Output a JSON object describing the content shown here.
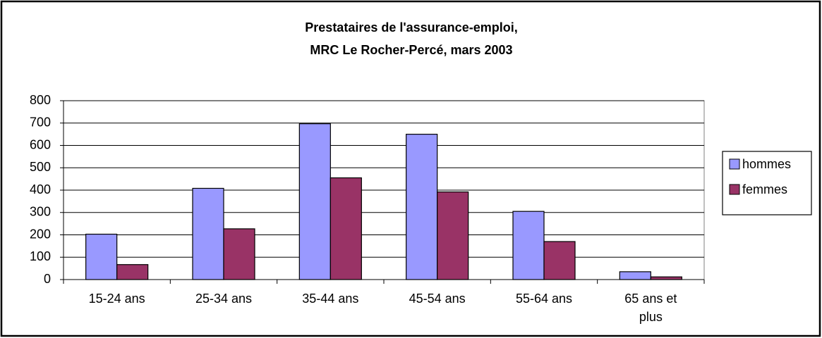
{
  "chart_data": {
    "type": "bar",
    "title": [
      "Prestataires de l'assurance-emploi,",
      "MRC Le Rocher-Percé, mars 2003"
    ],
    "categories": [
      "15-24 ans",
      "25-34 ans",
      "35-44 ans",
      "45-54 ans",
      "55-64 ans",
      "65 ans et plus"
    ],
    "series": [
      {
        "name": "hommes",
        "color": "#9999ff",
        "values": [
          203,
          408,
          697,
          650,
          305,
          35
        ]
      },
      {
        "name": "femmes",
        "color": "#993366",
        "values": [
          67,
          227,
          455,
          392,
          170,
          12
        ]
      }
    ],
    "ylim": [
      0,
      800
    ],
    "yticks": [
      0,
      100,
      200,
      300,
      400,
      500,
      600,
      700,
      800
    ],
    "grid": true,
    "legend": "right"
  }
}
